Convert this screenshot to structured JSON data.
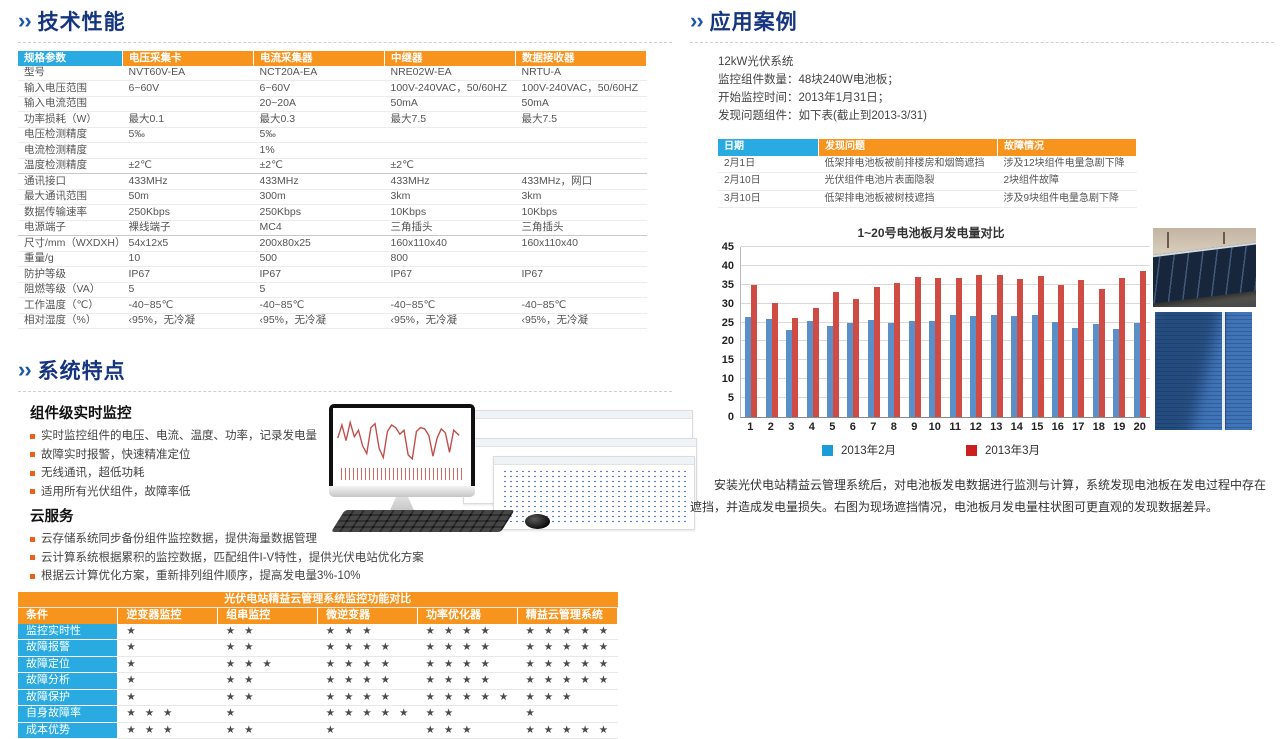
{
  "section_chevron": "››",
  "colors": {
    "title_navy": "#16357f",
    "header_cyan": "#29abe2",
    "header_orange": "#f7941e",
    "bullet_orange": "#e8621a",
    "star_gray": "#4a4a4a"
  },
  "left": {
    "tech_title": "技术性能",
    "spec_table": {
      "headers": [
        "规格参数",
        "电压采集卡",
        "电流采集器",
        "中继器",
        "数据接收器"
      ],
      "rows": [
        [
          "型号",
          "NVT60V-EA",
          "NCT20A-EA",
          "NRE02W-EA",
          "NRTU-A"
        ],
        [
          "输入电压范围",
          "6~60V",
          "6~60V",
          "100V-240VAC，50/60HZ",
          "100V-240VAC，50/60HZ"
        ],
        [
          "输入电流范围",
          "",
          " 20~20A",
          "50mA",
          "50mA"
        ],
        [
          "功率损耗（W）",
          "最大0.1",
          "最大0.3",
          "最大7.5",
          "最大7.5"
        ],
        [
          "电压检测精度",
          "5‰",
          "5‰",
          "",
          ""
        ],
        [
          "电流检测精度",
          "",
          "1%",
          "",
          ""
        ],
        [
          "温度检测精度",
          "±2℃",
          "±2℃",
          "±2℃",
          ""
        ],
        [
          "通讯接口",
          "433MHz",
          "433MHz",
          "433MHz",
          "433MHz，网口"
        ],
        [
          "最大通讯范围",
          "50m",
          "300m",
          "3km",
          "3km"
        ],
        [
          "数据传输速率",
          "250Kbps",
          "250Kbps",
          "10Kbps",
          "10Kbps"
        ],
        [
          "电源端子",
          "裸线端子",
          "MC4",
          "三角插头",
          "三角插头"
        ],
        [
          "尺寸/mm（WXDXH）",
          "54x12x5",
          "200x80x25",
          "160x110x40",
          "160x110x40"
        ],
        [
          "重量/g",
          "10",
          "500",
          "800",
          ""
        ],
        [
          "防护等级",
          "IP67",
          "IP67",
          "IP67",
          "IP67"
        ],
        [
          "阻燃等级（VA）",
          "5",
          "5",
          "",
          ""
        ],
        [
          "工作温度（℃）",
          "-40~85℃",
          "-40~85℃",
          "-40~85℃",
          "-40~85℃"
        ],
        [
          "相对湿度（%）",
          "‹95%，无冷凝",
          "‹95%，无冷凝",
          "‹95%，无冷凝",
          "‹95%，无冷凝"
        ]
      ],
      "group_end_rows": [
        6,
        10
      ]
    },
    "features_title": "系统特点",
    "feature_groups": [
      {
        "heading": "组件级实时监控",
        "items": [
          "实时监控组件的电压、电流、温度、功率，记录发电量",
          "故障实时报警，快速精准定位",
          "无线通讯，超低功耗",
          "适用所有光伏组件，故障率低"
        ]
      },
      {
        "heading": "云服务",
        "items": [
          "云存储系统同步备份组件监控数据，提供海量数据管理",
          "云计算系统根据累积的监控数据，匹配组件I-V特性，提供光伏电站优化方案",
          "根据云计算优化方案，重新排列组件顺序，提高发电量3%-10%"
        ]
      }
    ],
    "compare_table": {
      "title": "光伏电站精益云管理系统监控功能对比",
      "headers": [
        "条件",
        "逆变器监控",
        "组串监控",
        "微逆变器",
        "功率优化器",
        "精益云管理系统"
      ],
      "rows": [
        {
          "label": "监控实时性",
          "stars": [
            1,
            2,
            3,
            4,
            5
          ]
        },
        {
          "label": "故障报警",
          "stars": [
            1,
            2,
            4,
            4,
            5
          ]
        },
        {
          "label": "故障定位",
          "stars": [
            1,
            3,
            4,
            4,
            5
          ]
        },
        {
          "label": "故障分析",
          "stars": [
            1,
            2,
            4,
            4,
            5
          ]
        },
        {
          "label": "故障保护",
          "stars": [
            1,
            2,
            4,
            5,
            3
          ]
        },
        {
          "label": "自身故障率",
          "stars": [
            3,
            1,
            5,
            2,
            1
          ]
        },
        {
          "label": "成本优势",
          "stars": [
            3,
            2,
            1,
            3,
            5
          ]
        }
      ]
    }
  },
  "right": {
    "case_title": "应用案例",
    "case_lines": [
      "12kW光伏系统",
      "监控组件数量：48块240W电池板；",
      "开始监控时间：2013年1月31日；",
      "发现问题组件：如下表(截止到2013-3/31)"
    ],
    "issue_table": {
      "headers": [
        "日期",
        "发现问题",
        "故障情况"
      ],
      "rows": [
        [
          "2月1日",
          "低架排电池板被前排楼房和烟筒遮挡",
          "涉及12块组件电量急剧下降"
        ],
        [
          "2月10日",
          "光伏组件电池片表面隐裂",
          "2块组件故障"
        ],
        [
          "3月10日",
          "低架排电池板被树枝遮挡",
          "涉及9块组件电量急剧下降"
        ]
      ]
    },
    "paragraph": "安装光伏电站精益云管理系统后，对电池板发电数据进行监测与计算，系统发现电池板在发电过程中存在遮挡，并造成发电量损失。右图为现场遮挡情况，电池板月发电量柱状图可更直观的发现数据差异。"
  },
  "chart_data": {
    "type": "bar",
    "title": "1~20号电池板月发电量对比",
    "categories": [
      "1",
      "2",
      "3",
      "4",
      "5",
      "6",
      "7",
      "8",
      "9",
      "10",
      "11",
      "12",
      "13",
      "14",
      "15",
      "16",
      "17",
      "18",
      "19",
      "20"
    ],
    "series": [
      {
        "name": "2013年2月",
        "color": "#5b8fc7",
        "legend_color": "#1b9cd8",
        "values": [
          26.5,
          26.0,
          23.0,
          25.5,
          24.2,
          25.0,
          25.8,
          25.0,
          25.3,
          25.5,
          27.0,
          26.8,
          27.0,
          26.8,
          27.0,
          25.2,
          23.5,
          24.5,
          23.2,
          25.0
        ]
      },
      {
        "name": "2013年3月",
        "color": "#cf4b44",
        "legend_color": "#cc1f1f",
        "values": [
          35.0,
          30.2,
          26.2,
          28.8,
          33.2,
          31.2,
          34.4,
          35.4,
          37.0,
          36.8,
          36.7,
          37.7,
          37.5,
          36.6,
          37.2,
          35.0,
          36.3,
          34.0,
          36.8,
          38.7
        ]
      }
    ],
    "xlabel": "",
    "ylabel": "",
    "ylim": [
      0,
      45
    ],
    "ytick_step": 5,
    "grid": true,
    "legend_position": "bottom"
  }
}
